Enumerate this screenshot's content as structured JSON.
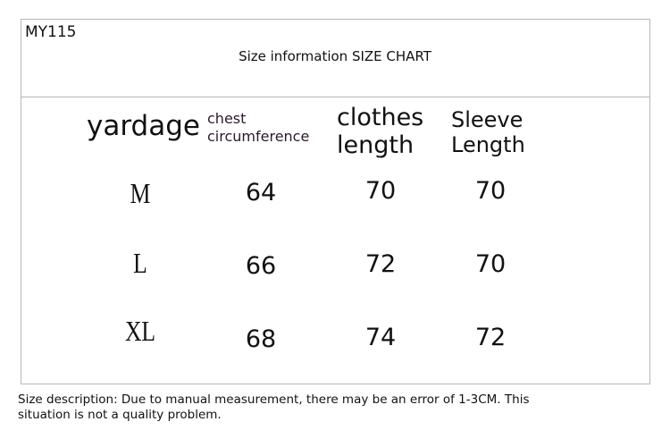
{
  "code": "MY115",
  "title": "Size information SIZE CHART",
  "headers": {
    "size": "yardage",
    "chest_1": "chest",
    "chest_2": "circumference",
    "clothes_1": "clothes",
    "clothes_2": "length",
    "sleeve_1": "Sleeve",
    "sleeve_2": "Length"
  },
  "rows": [
    {
      "size": "M",
      "chest": "64",
      "clothes": "70",
      "sleeve": "70"
    },
    {
      "size": "L",
      "chest": "66",
      "clothes": "72",
      "sleeve": "70"
    },
    {
      "size": "XL",
      "chest": "68",
      "clothes": "74",
      "sleeve": "72"
    }
  ],
  "note_1": "Size description: Due to manual measurement, there may be an error of 1-3CM. This",
  "note_2": "situation is not a quality problem."
}
